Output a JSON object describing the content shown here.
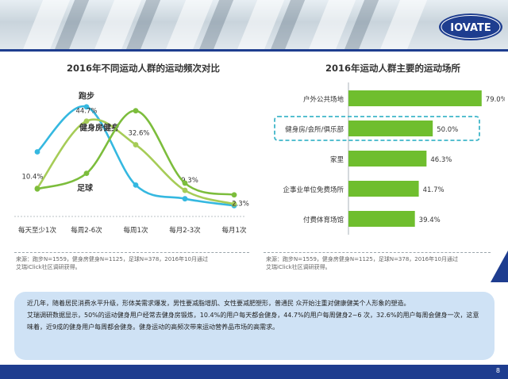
{
  "brand": {
    "logo_text": "IOVATE"
  },
  "page_number": "8",
  "left_panel": {
    "title": "2016年不同运动人群的运动频次对比",
    "source_line1": "来源：跑步N=1559，健身房健身N=1125，足球N=378，2016年10月通过",
    "source_line2": "艾瑞iClick社区调研获得。"
  },
  "right_panel": {
    "title": "2016年运动人群主要的运动场所",
    "source_line1": "来源：跑步N=1559，健身房健身N=1125，足球N=378，2016年10月通过",
    "source_line2": "艾瑞iClick社区调研获得。"
  },
  "description": {
    "para1": "近几年，随着居民消费水平升级，形体美需求爆发，男性要减脂增肌、女性要减肥塑形，普通民  众开始注重对健康健美个人形象的塑造。",
    "para2": "艾瑞调研数据显示，50%的运动健身用户经常去健身房锻炼，10.4%的用户每天都会健身，44.7%的用户每周健身2~6 次，32.6%的用户每周会健身一次，这意味着，近9成的健身用户每周都会健身。健身运动的高频次带来运动营养品市场的高需求。"
  },
  "colors": {
    "running": "#35b8e0",
    "gym": "#a6cc57",
    "football": "#7cbd3c",
    "bar": "#6fbe2e",
    "navy": "#1e3d8f",
    "highlight": "#3fb6c9"
  },
  "chart_data": [
    {
      "type": "line",
      "title": "2016年不同运动人群的运动频次对比",
      "categories": [
        "每天至少1次",
        "每周2-6次",
        "每周1次",
        "每月2-3次",
        "每月1次"
      ],
      "series": [
        {
          "name": "跑步",
          "values": [
            29,
            52,
            12,
            5,
            1.5
          ]
        },
        {
          "name": "健身房健身",
          "values": [
            10.4,
            44.7,
            32.6,
            9.3,
            2.3
          ],
          "labels": [
            "10.4%",
            "44.7%",
            "32.6%",
            "9.3%",
            "2.3%"
          ]
        },
        {
          "name": "足球",
          "values": [
            10,
            18,
            50,
            13,
            7
          ]
        }
      ],
      "ylim": [
        0,
        60
      ],
      "grid": false,
      "smooth": true
    },
    {
      "type": "bar",
      "orientation": "horizontal",
      "title": "2016年运动人群主要的运动场所",
      "categories": [
        "户外公共场地",
        "健身房/会所/俱乐部",
        "家里",
        "企事业单位免费场所",
        "付费体育场馆"
      ],
      "values": [
        79.0,
        50.0,
        46.3,
        41.7,
        39.4
      ],
      "value_labels": [
        "79.0%",
        "50.0%",
        "46.3%",
        "41.7%",
        "39.4%"
      ],
      "highlight_category": "健身房/会所/俱乐部",
      "xlim": [
        0,
        100
      ]
    }
  ]
}
